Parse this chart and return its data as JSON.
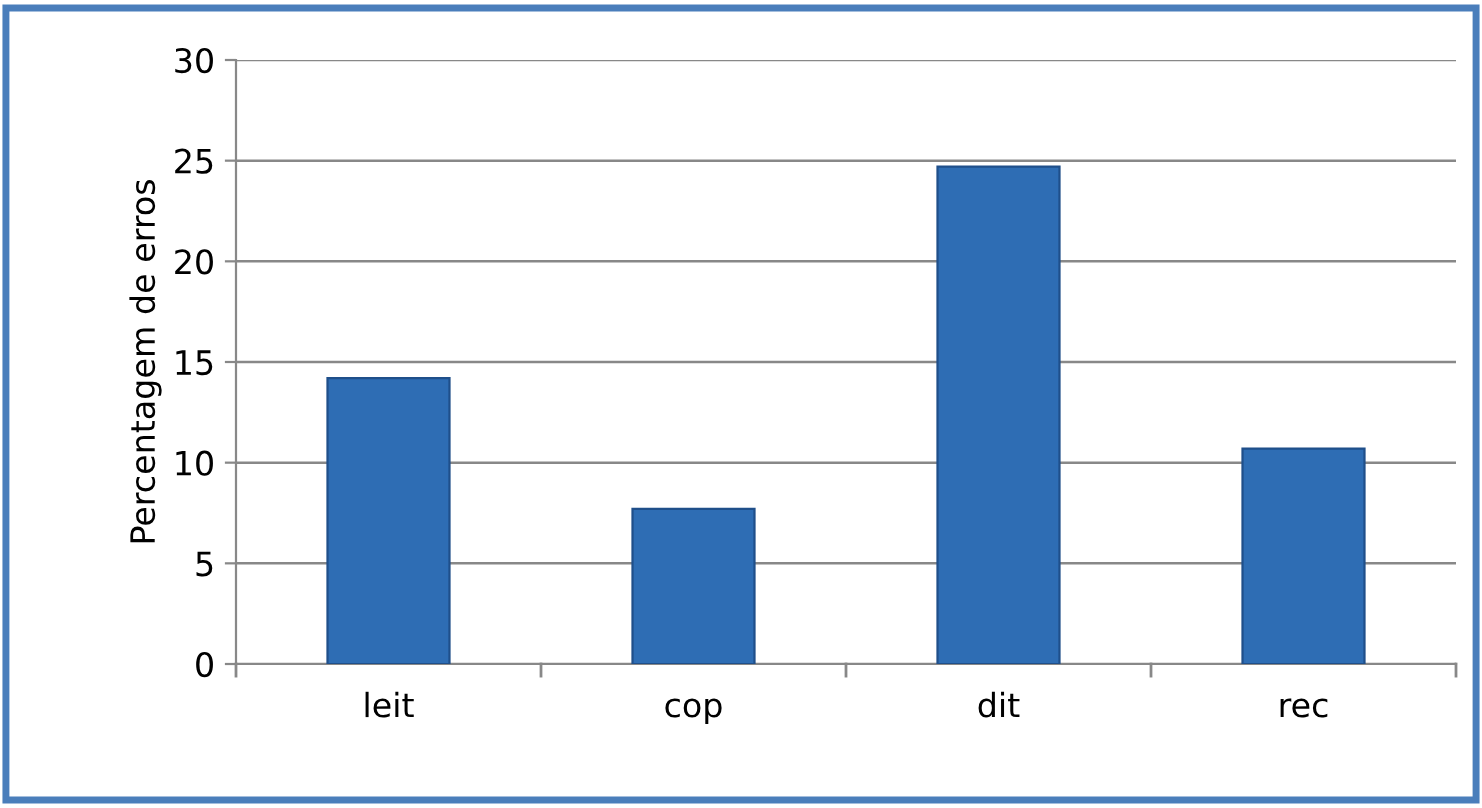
{
  "chart_data": {
    "type": "bar",
    "ylabel": "Percentagem de erros",
    "categories": [
      "leit",
      "cop",
      "dit",
      "rec"
    ],
    "values": [
      14.2,
      7.7,
      24.7,
      10.7
    ],
    "color": "#2e6db4",
    "ylim": [
      0,
      30
    ],
    "yticks": [
      0,
      5,
      10,
      15,
      20,
      25,
      30
    ],
    "grid": "y",
    "legend": false
  }
}
